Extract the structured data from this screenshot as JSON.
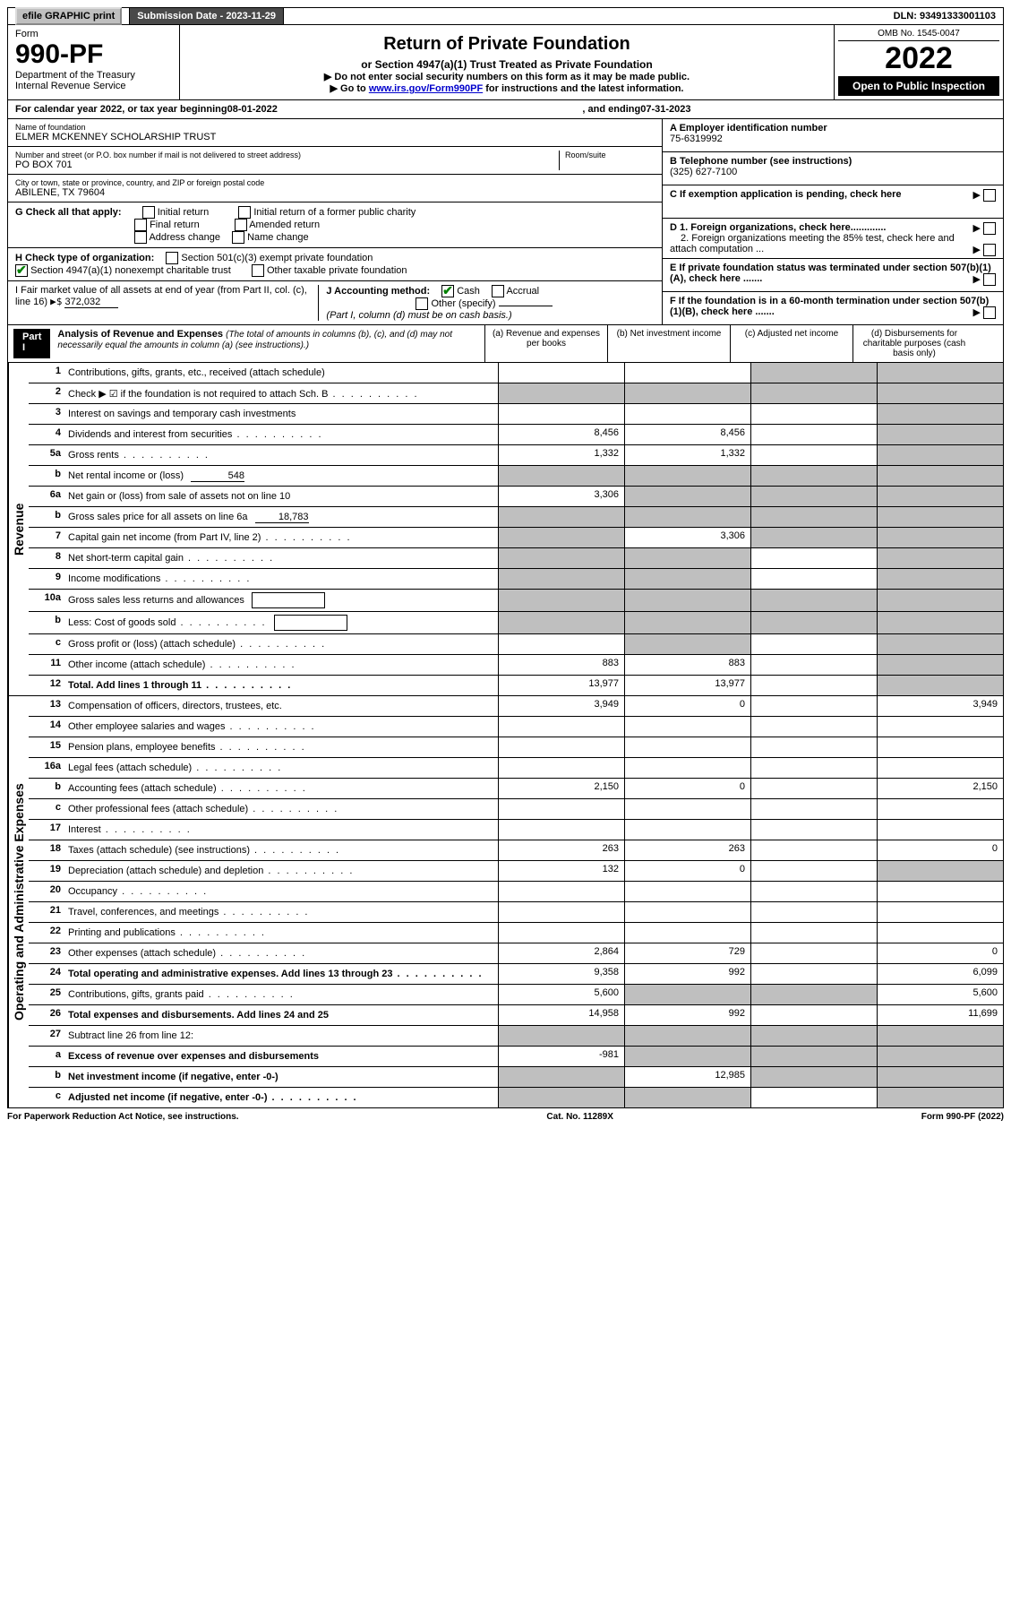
{
  "top_bar": {
    "efile": "efile GRAPHIC print",
    "submission_label": "Submission Date - 2023-11-29",
    "dln": "DLN: 93491333001103"
  },
  "header": {
    "form_label": "Form",
    "form_number": "990-PF",
    "dept": "Department of the Treasury",
    "irs": "Internal Revenue Service",
    "title": "Return of Private Foundation",
    "subtitle": "or Section 4947(a)(1) Trust Treated as Private Foundation",
    "line1": "▶ Do not enter social security numbers on this form as it may be made public.",
    "line2_pre": "▶ Go to ",
    "line2_link": "www.irs.gov/Form990PF",
    "line2_post": " for instructions and the latest information.",
    "omb": "OMB No. 1545-0047",
    "year": "2022",
    "open": "Open to Public Inspection"
  },
  "cal_year": {
    "prefix": "For calendar year 2022, or tax year beginning ",
    "begin": "08-01-2022",
    "mid": ", and ending ",
    "end": "07-31-2023"
  },
  "info": {
    "name_label": "Name of foundation",
    "name": "ELMER MCKENNEY SCHOLARSHIP TRUST",
    "addr_label": "Number and street (or P.O. box number if mail is not delivered to street address)",
    "room_label": "Room/suite",
    "addr": "PO BOX 701",
    "city_label": "City or town, state or province, country, and ZIP or foreign postal code",
    "city": "ABILENE, TX  79604",
    "ein_label": "A Employer identification number",
    "ein": "75-6319992",
    "tel_label": "B Telephone number (see instructions)",
    "tel": "(325) 627-7100",
    "c_label": "C If exemption application is pending, check here",
    "d1": "D 1. Foreign organizations, check here.............",
    "d2": "2. Foreign organizations meeting the 85% test, check here and attach computation ...",
    "e_label": "E  If private foundation status was terminated under section 507(b)(1)(A), check here .......",
    "f_label": "F  If the foundation is in a 60-month termination under section 507(b)(1)(B), check here ......."
  },
  "g": {
    "label": "G Check all that apply:",
    "opts": [
      "Initial return",
      "Final return",
      "Address change",
      "Initial return of a former public charity",
      "Amended return",
      "Name change"
    ]
  },
  "h": {
    "label": "H Check type of organization:",
    "opt1": "Section 501(c)(3) exempt private foundation",
    "opt2": "Section 4947(a)(1) nonexempt charitable trust",
    "opt3": "Other taxable private foundation"
  },
  "i": {
    "label": "I Fair market value of all assets at end of year (from Part II, col. (c), line 16)",
    "arrow": "▶$",
    "value": "372,032"
  },
  "j": {
    "label": "J Accounting method:",
    "cash": "Cash",
    "accrual": "Accrual",
    "other": "Other (specify)",
    "note": "(Part I, column (d) must be on cash basis.)"
  },
  "part_i": {
    "label": "Part I",
    "title": "Analysis of Revenue and Expenses",
    "desc": "(The total of amounts in columns (b), (c), and (d) may not necessarily equal the amounts in column (a) (see instructions).)",
    "col_a": "(a) Revenue and expenses per books",
    "col_b": "(b) Net investment income",
    "col_c": "(c) Adjusted net income",
    "col_d": "(d) Disbursements for charitable purposes (cash basis only)"
  },
  "sections": {
    "revenue": "Revenue",
    "expenses": "Operating and Administrative Expenses"
  },
  "rows": [
    {
      "n": "1",
      "d": "Contributions, gifts, grants, etc., received (attach schedule)",
      "a": "",
      "b": "",
      "c": "grey",
      "dd": "grey"
    },
    {
      "n": "2",
      "d": "Check ▶ ☑ if the foundation is not required to attach Sch. B",
      "dots": true,
      "a": "grey",
      "b": "grey",
      "c": "grey",
      "dd": "grey"
    },
    {
      "n": "3",
      "d": "Interest on savings and temporary cash investments",
      "a": "",
      "b": "",
      "c": "",
      "dd": "grey"
    },
    {
      "n": "4",
      "d": "Dividends and interest from securities",
      "dots": true,
      "a": "8,456",
      "b": "8,456",
      "c": "",
      "dd": "grey"
    },
    {
      "n": "5a",
      "d": "Gross rents",
      "dots": true,
      "a": "1,332",
      "b": "1,332",
      "c": "",
      "dd": "grey"
    },
    {
      "n": "b",
      "d": "Net rental income or (loss)",
      "inline": "548",
      "a": "grey",
      "b": "grey",
      "c": "grey",
      "dd": "grey"
    },
    {
      "n": "6a",
      "d": "Net gain or (loss) from sale of assets not on line 10",
      "a": "3,306",
      "b": "grey",
      "c": "grey",
      "dd": "grey"
    },
    {
      "n": "b",
      "d": "Gross sales price for all assets on line 6a",
      "inline": "18,783",
      "a": "grey",
      "b": "grey",
      "c": "grey",
      "dd": "grey"
    },
    {
      "n": "7",
      "d": "Capital gain net income (from Part IV, line 2)",
      "dots": true,
      "a": "grey",
      "b": "3,306",
      "c": "grey",
      "dd": "grey"
    },
    {
      "n": "8",
      "d": "Net short-term capital gain",
      "dots": true,
      "a": "grey",
      "b": "grey",
      "c": "",
      "dd": "grey"
    },
    {
      "n": "9",
      "d": "Income modifications",
      "dots": true,
      "a": "grey",
      "b": "grey",
      "c": "",
      "dd": "grey"
    },
    {
      "n": "10a",
      "d": "Gross sales less returns and allowances",
      "box": true,
      "a": "grey",
      "b": "grey",
      "c": "grey",
      "dd": "grey"
    },
    {
      "n": "b",
      "d": "Less: Cost of goods sold",
      "dots": true,
      "box": true,
      "a": "grey",
      "b": "grey",
      "c": "grey",
      "dd": "grey"
    },
    {
      "n": "c",
      "d": "Gross profit or (loss) (attach schedule)",
      "dots": true,
      "a": "",
      "b": "grey",
      "c": "",
      "dd": "grey"
    },
    {
      "n": "11",
      "d": "Other income (attach schedule)",
      "dots": true,
      "a": "883",
      "b": "883",
      "c": "",
      "dd": "grey"
    },
    {
      "n": "12",
      "d": "Total. Add lines 1 through 11",
      "dots": true,
      "bold": true,
      "a": "13,977",
      "b": "13,977",
      "c": "",
      "dd": "grey"
    }
  ],
  "exp_rows": [
    {
      "n": "13",
      "d": "Compensation of officers, directors, trustees, etc.",
      "a": "3,949",
      "b": "0",
      "c": "",
      "dd": "3,949"
    },
    {
      "n": "14",
      "d": "Other employee salaries and wages",
      "dots": true,
      "a": "",
      "b": "",
      "c": "",
      "dd": ""
    },
    {
      "n": "15",
      "d": "Pension plans, employee benefits",
      "dots": true,
      "a": "",
      "b": "",
      "c": "",
      "dd": ""
    },
    {
      "n": "16a",
      "d": "Legal fees (attach schedule)",
      "dots": true,
      "a": "",
      "b": "",
      "c": "",
      "dd": ""
    },
    {
      "n": "b",
      "d": "Accounting fees (attach schedule)",
      "dots": true,
      "a": "2,150",
      "b": "0",
      "c": "",
      "dd": "2,150"
    },
    {
      "n": "c",
      "d": "Other professional fees (attach schedule)",
      "dots": true,
      "a": "",
      "b": "",
      "c": "",
      "dd": ""
    },
    {
      "n": "17",
      "d": "Interest",
      "dots": true,
      "a": "",
      "b": "",
      "c": "",
      "dd": ""
    },
    {
      "n": "18",
      "d": "Taxes (attach schedule) (see instructions)",
      "dots": true,
      "a": "263",
      "b": "263",
      "c": "",
      "dd": "0"
    },
    {
      "n": "19",
      "d": "Depreciation (attach schedule) and depletion",
      "dots": true,
      "a": "132",
      "b": "0",
      "c": "",
      "dd": "grey"
    },
    {
      "n": "20",
      "d": "Occupancy",
      "dots": true,
      "a": "",
      "b": "",
      "c": "",
      "dd": ""
    },
    {
      "n": "21",
      "d": "Travel, conferences, and meetings",
      "dots": true,
      "a": "",
      "b": "",
      "c": "",
      "dd": ""
    },
    {
      "n": "22",
      "d": "Printing and publications",
      "dots": true,
      "a": "",
      "b": "",
      "c": "",
      "dd": ""
    },
    {
      "n": "23",
      "d": "Other expenses (attach schedule)",
      "dots": true,
      "a": "2,864",
      "b": "729",
      "c": "",
      "dd": "0"
    },
    {
      "n": "24",
      "d": "Total operating and administrative expenses. Add lines 13 through 23",
      "dots": true,
      "bold": true,
      "a": "9,358",
      "b": "992",
      "c": "",
      "dd": "6,099"
    },
    {
      "n": "25",
      "d": "Contributions, gifts, grants paid",
      "dots": true,
      "a": "5,600",
      "b": "grey",
      "c": "grey",
      "dd": "5,600"
    },
    {
      "n": "26",
      "d": "Total expenses and disbursements. Add lines 24 and 25",
      "bold": true,
      "a": "14,958",
      "b": "992",
      "c": "",
      "dd": "11,699"
    },
    {
      "n": "27",
      "d": "Subtract line 26 from line 12:",
      "a": "grey",
      "b": "grey",
      "c": "grey",
      "dd": "grey"
    },
    {
      "n": "a",
      "d": "Excess of revenue over expenses and disbursements",
      "bold": true,
      "a": "-981",
      "b": "grey",
      "c": "grey",
      "dd": "grey"
    },
    {
      "n": "b",
      "d": "Net investment income (if negative, enter -0-)",
      "bold": true,
      "a": "grey",
      "b": "12,985",
      "c": "grey",
      "dd": "grey"
    },
    {
      "n": "c",
      "d": "Adjusted net income (if negative, enter -0-)",
      "dots": true,
      "bold": true,
      "a": "grey",
      "b": "grey",
      "c": "",
      "dd": "grey"
    }
  ],
  "footer": {
    "left": "For Paperwork Reduction Act Notice, see instructions.",
    "center": "Cat. No. 11289X",
    "right": "Form 990-PF (2022)"
  }
}
